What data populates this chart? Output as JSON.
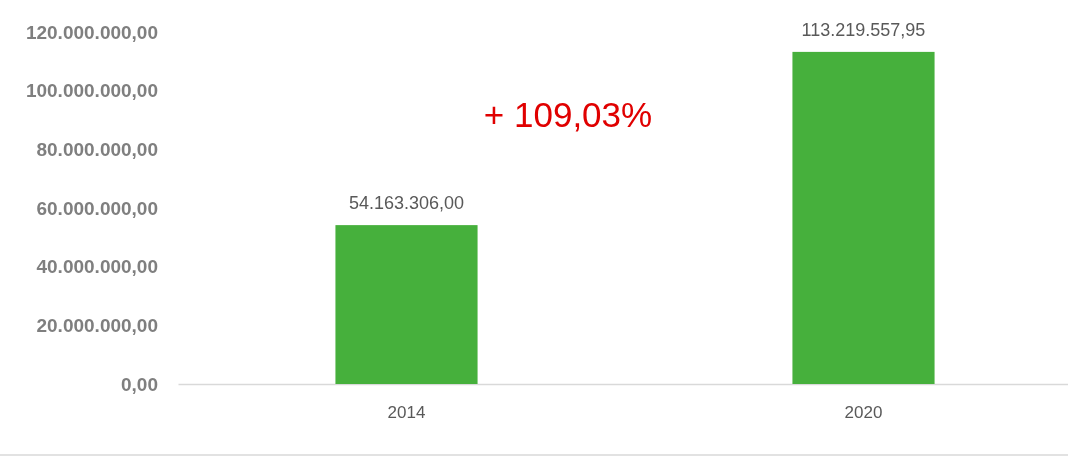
{
  "chart_data": {
    "type": "bar",
    "categories": [
      "2014",
      "2020"
    ],
    "values": [
      54163306.0,
      113219557.95
    ],
    "value_labels": [
      "54.163.306,00",
      "113.219.557,95"
    ],
    "color": "#46b03c",
    "ylim": [
      0,
      120000000
    ],
    "yticks": [
      {
        "value": 0,
        "label": "0,00"
      },
      {
        "value": 20000000,
        "label": "20.000.000,00"
      },
      {
        "value": 40000000,
        "label": "40.000.000,00"
      },
      {
        "value": 60000000,
        "label": "60.000.000,00"
      },
      {
        "value": 80000000,
        "label": "80.000.000,00"
      },
      {
        "value": 100000000,
        "label": "100.000.000,00"
      },
      {
        "value": 120000000,
        "label": "120.000.000,00"
      }
    ],
    "annotations": [
      "+ 109,03%"
    ]
  }
}
